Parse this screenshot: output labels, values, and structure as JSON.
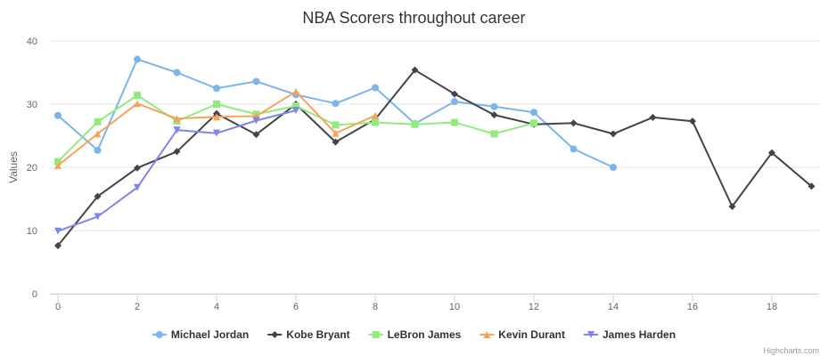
{
  "chart_data": {
    "type": "line",
    "title": "NBA Scorers throughout career",
    "ylabel": "Values",
    "xlabel": "",
    "xlim": [
      0,
      19
    ],
    "ylim": [
      0,
      40
    ],
    "x_ticks": [
      "0",
      "2",
      "4",
      "6",
      "8",
      "10",
      "12",
      "14",
      "16",
      "18"
    ],
    "y_ticks": [
      "0",
      "10",
      "20",
      "30",
      "40"
    ],
    "grid": "horizontal",
    "legend_position": "bottom-center",
    "credits": "Highcharts.com",
    "series": [
      {
        "name": "Michael Jordan",
        "color": "#7cb5ec",
        "marker": "circle",
        "values": [
          28.2,
          22.7,
          37.1,
          35.0,
          32.5,
          33.6,
          31.5,
          30.1,
          32.6,
          26.9,
          30.4,
          29.6,
          28.7,
          22.9,
          20.0
        ]
      },
      {
        "name": "Kobe Bryant",
        "color": "#434348",
        "marker": "diamond",
        "values": [
          7.6,
          15.4,
          19.9,
          22.5,
          28.5,
          25.2,
          30.0,
          24.0,
          27.6,
          35.4,
          31.6,
          28.3,
          26.8,
          27.0,
          25.3,
          27.9,
          27.3,
          13.8,
          22.3,
          17.0
        ]
      },
      {
        "name": "LeBron James",
        "color": "#90ed7d",
        "marker": "square",
        "values": [
          20.9,
          27.2,
          31.4,
          27.3,
          30.0,
          28.4,
          29.7,
          26.7,
          27.1,
          26.8,
          27.1,
          25.3,
          27.0
        ]
      },
      {
        "name": "Kevin Durant",
        "color": "#f7a35c",
        "marker": "triangle",
        "values": [
          20.3,
          25.3,
          30.1,
          27.7,
          28.0,
          28.1,
          32.0,
          25.4,
          28.2
        ]
      },
      {
        "name": "James Harden",
        "color": "#8085e9",
        "marker": "triangle-down",
        "values": [
          9.9,
          12.2,
          16.8,
          25.9,
          25.4,
          27.4,
          29.0
        ]
      }
    ]
  }
}
